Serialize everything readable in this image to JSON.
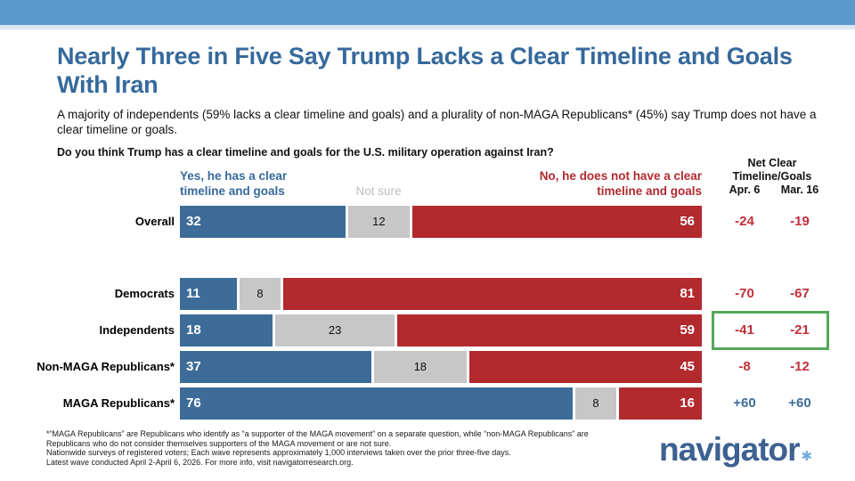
{
  "header": {
    "title_line1": "Nearly Three in Five Say Trump Lacks a Clear Timeline and Goals",
    "title_line2": "With Iran",
    "subtitle": "A majority of independents (59% lacks a clear timeline and goals) and a plurality of non-MAGA Republicans* (45%) say Trump does not have a clear timeline or goals.",
    "question": "Do you think Trump has a clear timeline and goals for the U.S. military operation against Iran?"
  },
  "legend": {
    "yes": "Yes, he has a clear timeline and goals",
    "not_sure": "Not sure",
    "no": "No, he does not have a clear timeline and goals"
  },
  "net_header": {
    "title": "Net Clear Timeline/Goals",
    "col1": "Apr. 6",
    "col2": "Mar. 16"
  },
  "chart_data": {
    "type": "bar",
    "orientation": "horizontal",
    "stacked": true,
    "axis_range": [
      0,
      100
    ],
    "series_names": [
      "Yes, he has a clear timeline and goals",
      "Not sure",
      "No, he does not have a clear timeline and goals"
    ],
    "colors": {
      "yes": "#3D6C98",
      "not_sure": "#C7C7C7",
      "no": "#B2292E"
    },
    "categories": [
      "Overall",
      "Democrats",
      "Independents",
      "Non-MAGA Republicans*",
      "MAGA Republicans*"
    ],
    "rows": [
      {
        "label": "Overall",
        "yes": 32,
        "not_sure": 12,
        "no": 56,
        "net_apr6": "-24",
        "net_mar16": "-19",
        "net_sign": "negative",
        "highlight": false
      },
      {
        "label": "Democrats",
        "yes": 11,
        "not_sure": 8,
        "no": 81,
        "net_apr6": "-70",
        "net_mar16": "-67",
        "net_sign": "negative",
        "highlight": false
      },
      {
        "label": "Independents",
        "yes": 18,
        "not_sure": 23,
        "no": 59,
        "net_apr6": "-41",
        "net_mar16": "-21",
        "net_sign": "negative",
        "highlight": true
      },
      {
        "label": "Non-MAGA Republicans*",
        "yes": 37,
        "not_sure": 18,
        "no": 45,
        "net_apr6": "-8",
        "net_mar16": "-12",
        "net_sign": "negative",
        "highlight": false
      },
      {
        "label": "MAGA Republicans*",
        "yes": 76,
        "not_sure": 8,
        "no": 16,
        "net_apr6": "+60",
        "net_mar16": "+60",
        "net_sign": "positive",
        "highlight": false
      }
    ]
  },
  "footnote": {
    "lines": [
      "*“MAGA Republicans” are Republicans who identify as “a supporter of the MAGA movement” on a separate question, while “non-MAGA Republicans” are",
      "Republicans who do not consider themselves supporters of the MAGA movement or are not sure.",
      "Nationwide surveys of registered voters; Each wave represents approximately 1,000 interviews taken over the prior three-five days.",
      "Latest wave conducted April 2-April 6, 2026. For more info, visit navigatorresearch.org."
    ]
  },
  "logo": {
    "text": "navigator",
    "mark": "✱"
  }
}
